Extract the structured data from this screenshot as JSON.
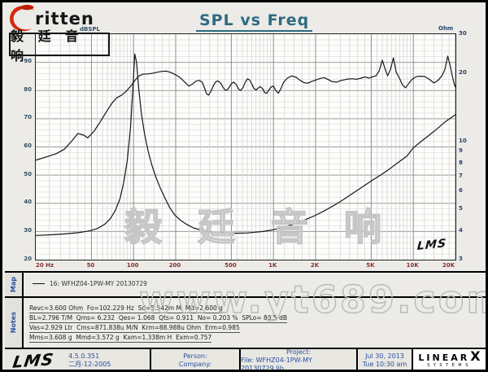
{
  "header": {
    "logo_text": "ritten",
    "logo_cn": "毅 廷 音 响",
    "title": "SPL vs Freq"
  },
  "chart": {
    "dbspl_label": "dBSPL",
    "ohm_label": "Ohm",
    "left_ticks": [
      90,
      80,
      70,
      60,
      50,
      40,
      30,
      20
    ],
    "right_ticks": [
      30,
      20,
      10,
      9,
      8,
      7,
      6,
      5,
      4,
      3
    ],
    "x_ticks": [
      {
        "f": 20,
        "label": "20 Hz",
        "align": "left"
      },
      {
        "f": 50,
        "label": "50",
        "align": "center"
      },
      {
        "f": 100,
        "label": "100",
        "align": "center"
      },
      {
        "f": 200,
        "label": "200",
        "align": "center"
      },
      {
        "f": 500,
        "label": "500",
        "align": "center"
      },
      {
        "f": 1000,
        "label": "1K",
        "align": "center"
      },
      {
        "f": 2000,
        "label": "2K",
        "align": "center"
      },
      {
        "f": 5000,
        "label": "5K",
        "align": "center"
      },
      {
        "f": 10000,
        "label": "10K",
        "align": "center"
      },
      {
        "f": 20000,
        "label": "20K",
        "align": "right"
      }
    ],
    "watermark_cn": "毅 廷 音 响",
    "lms_script": "LMS"
  },
  "chart_data": {
    "type": "line",
    "title": "SPL vs Freq",
    "x_axis": {
      "scale": "log",
      "min": 20,
      "max": 20000,
      "unit": "Hz"
    },
    "y_axis_left": {
      "label": "dBSPL",
      "min": 20,
      "max": 100,
      "ticks": [
        20,
        30,
        40,
        50,
        60,
        70,
        80,
        90
      ]
    },
    "y_axis_right": {
      "label": "Ohm",
      "scale": "log",
      "min": 3,
      "max": 30,
      "ticks": [
        3,
        4,
        5,
        6,
        7,
        8,
        9,
        10,
        20,
        30
      ]
    },
    "grid": true,
    "series": [
      {
        "name": "SPL 16: WFHZ04-1PW-MY 20130729",
        "axis": "left",
        "unit": "dB",
        "points": [
          [
            20,
            55.3
          ],
          [
            24,
            56.5
          ],
          [
            28,
            57.6
          ],
          [
            32,
            59.2
          ],
          [
            36,
            62
          ],
          [
            40,
            64.8
          ],
          [
            44,
            64.2
          ],
          [
            47,
            63.2
          ],
          [
            52,
            65.5
          ],
          [
            58,
            69
          ],
          [
            64,
            72.5
          ],
          [
            70,
            75.5
          ],
          [
            76,
            77.5
          ],
          [
            82,
            78.3
          ],
          [
            88,
            79.6
          ],
          [
            95,
            81.5
          ],
          [
            102,
            83.5
          ],
          [
            108,
            85
          ],
          [
            116,
            85.8
          ],
          [
            126,
            85.9
          ],
          [
            136,
            86.1
          ],
          [
            148,
            86.5
          ],
          [
            160,
            86.8
          ],
          [
            172,
            86.9
          ],
          [
            185,
            86.4
          ],
          [
            200,
            85.6
          ],
          [
            215,
            84.6
          ],
          [
            230,
            83.2
          ],
          [
            248,
            81.6
          ],
          [
            262,
            82.2
          ],
          [
            278,
            83.3
          ],
          [
            295,
            83.6
          ],
          [
            310,
            83
          ],
          [
            322,
            80.8
          ],
          [
            333,
            78.8
          ],
          [
            344,
            78.4
          ],
          [
            358,
            79.8
          ],
          [
            372,
            81.8
          ],
          [
            388,
            83.2
          ],
          [
            402,
            83.4
          ],
          [
            418,
            82.7
          ],
          [
            434,
            81.3
          ],
          [
            450,
            80.2
          ],
          [
            465,
            80.1
          ],
          [
            482,
            81.1
          ],
          [
            500,
            82.4
          ],
          [
            520,
            83
          ],
          [
            542,
            82.1
          ],
          [
            562,
            80.6
          ],
          [
            582,
            80
          ],
          [
            605,
            81
          ],
          [
            628,
            82.9
          ],
          [
            652,
            84.2
          ],
          [
            676,
            83.7
          ],
          [
            700,
            82.3
          ],
          [
            726,
            80.7
          ],
          [
            752,
            80.2
          ],
          [
            778,
            80.9
          ],
          [
            805,
            81.4
          ],
          [
            835,
            80.7
          ],
          [
            865,
            79.3
          ],
          [
            895,
            79
          ],
          [
            925,
            80.1
          ],
          [
            958,
            81.2
          ],
          [
            1000,
            81.6
          ],
          [
            1042,
            79.9
          ],
          [
            1085,
            79.1
          ],
          [
            1130,
            80.7
          ],
          [
            1180,
            82.9
          ],
          [
            1255,
            84.4
          ],
          [
            1355,
            85.2
          ],
          [
            1455,
            84.7
          ],
          [
            1555,
            83.6
          ],
          [
            1655,
            82.8
          ],
          [
            1760,
            82.6
          ],
          [
            1865,
            83.2
          ],
          [
            2000,
            83.7
          ],
          [
            2150,
            84.3
          ],
          [
            2300,
            84.6
          ],
          [
            2460,
            83.9
          ],
          [
            2620,
            83.2
          ],
          [
            2820,
            83
          ],
          [
            3020,
            83.5
          ],
          [
            3320,
            84
          ],
          [
            3620,
            84.2
          ],
          [
            3920,
            84
          ],
          [
            4220,
            84.4
          ],
          [
            4520,
            84.8
          ],
          [
            4820,
            84.4
          ],
          [
            5120,
            84.9
          ],
          [
            5420,
            85.3
          ],
          [
            5700,
            87
          ],
          [
            6000,
            90.8
          ],
          [
            6250,
            88
          ],
          [
            6550,
            85.2
          ],
          [
            6850,
            87.5
          ],
          [
            7200,
            91.6
          ],
          [
            7550,
            86.5
          ],
          [
            7950,
            84.4
          ],
          [
            8350,
            82
          ],
          [
            8800,
            81
          ],
          [
            9300,
            82.6
          ],
          [
            9800,
            84
          ],
          [
            10400,
            84.8
          ],
          [
            11000,
            85.1
          ],
          [
            12000,
            85
          ],
          [
            13000,
            84
          ],
          [
            14000,
            82.7
          ],
          [
            15000,
            83.6
          ],
          [
            16000,
            85.2
          ],
          [
            16800,
            87.5
          ],
          [
            17600,
            92.2
          ],
          [
            18400,
            88.5
          ],
          [
            19100,
            84.5
          ],
          [
            19600,
            82.3
          ],
          [
            20000,
            81.2
          ]
        ]
      },
      {
        "name": "Impedance",
        "axis": "right",
        "unit": "Ohm",
        "points": [
          [
            20,
            3.84
          ],
          [
            26,
            3.87
          ],
          [
            32,
            3.9
          ],
          [
            40,
            3.95
          ],
          [
            48,
            4.02
          ],
          [
            55,
            4.12
          ],
          [
            62,
            4.3
          ],
          [
            68,
            4.55
          ],
          [
            74,
            4.95
          ],
          [
            80,
            5.6
          ],
          [
            85,
            6.6
          ],
          [
            90,
            8.2
          ],
          [
            95,
            11.5
          ],
          [
            99,
            17.5
          ],
          [
            102,
            24.5
          ],
          [
            105,
            22.5
          ],
          [
            109,
            17
          ],
          [
            114,
            13.2
          ],
          [
            120,
            10.8
          ],
          [
            127,
            9.1
          ],
          [
            135,
            7.9
          ],
          [
            144,
            7
          ],
          [
            154,
            6.3
          ],
          [
            166,
            5.7
          ],
          [
            180,
            5.15
          ],
          [
            196,
            4.75
          ],
          [
            215,
            4.5
          ],
          [
            240,
            4.3
          ],
          [
            268,
            4.15
          ],
          [
            300,
            4.06
          ],
          [
            340,
            4
          ],
          [
            385,
            3.96
          ],
          [
            440,
            3.94
          ],
          [
            500,
            3.93
          ],
          [
            570,
            3.93
          ],
          [
            650,
            3.94
          ],
          [
            740,
            3.97
          ],
          [
            840,
            4
          ],
          [
            950,
            4.05
          ],
          [
            1080,
            4.12
          ],
          [
            1250,
            4.22
          ],
          [
            1450,
            4.35
          ],
          [
            1700,
            4.52
          ],
          [
            2000,
            4.72
          ],
          [
            2350,
            4.97
          ],
          [
            2750,
            5.25
          ],
          [
            3200,
            5.57
          ],
          [
            3750,
            5.95
          ],
          [
            4400,
            6.35
          ],
          [
            5100,
            6.75
          ],
          [
            5900,
            7.15
          ],
          [
            6800,
            7.6
          ],
          [
            7800,
            8.1
          ],
          [
            9000,
            8.65
          ],
          [
            10000,
            9.4
          ],
          [
            11500,
            10.1
          ],
          [
            13000,
            10.7
          ],
          [
            15000,
            11.5
          ],
          [
            17000,
            12.3
          ],
          [
            19000,
            12.9
          ],
          [
            20000,
            13.2
          ]
        ]
      }
    ]
  },
  "map": {
    "label": "Map",
    "legend": "16: WFHZ04-1PW-MY   20130729"
  },
  "notes": {
    "label": "Notes",
    "lines": [
      "Revc=3.600 Ohm  Fo=102.229 Hz  Sd=5.542m M  Md=2.600 g",
      "BL=2.796 T/M  Qms= 6.232  Qes= 1.068  Qts= 0.911  No= 0.203 %  SPLo= 86.5 dB",
      "Vas=2.929 Ltr  Cms=871.838u M/N  Krm=88.988u Ohm  Erm=0.985",
      "Mms=3.608 g  Mmd=3.572 g  Kxm=1.338m H  Exm=0.757"
    ]
  },
  "watermark": {
    "site": "www.yt689.com"
  },
  "footer": {
    "lms_logo": "LMS",
    "version": "4.5.0.351",
    "version_date": "二月-12-2005",
    "person_label": "Person:",
    "company_label": "Company:",
    "project_label": "Project:",
    "file_line": "File: WFHZ04-1PW-MY 20130729.lib",
    "date_line1": "Jul 30, 2013",
    "date_line2": "Tue 10:30 am",
    "brand_linear": "LINEAR",
    "brand_x": "X",
    "brand_sub": "SYSTEMS"
  },
  "colors": {
    "title": "#2e6b80",
    "axis_left": "#2c5066",
    "axis_right": "#25456e",
    "axis_freq": "#8b2e2e",
    "tab_text": "#2b4fa0",
    "logo_red": "#d32a0e",
    "curve": "#161616"
  }
}
